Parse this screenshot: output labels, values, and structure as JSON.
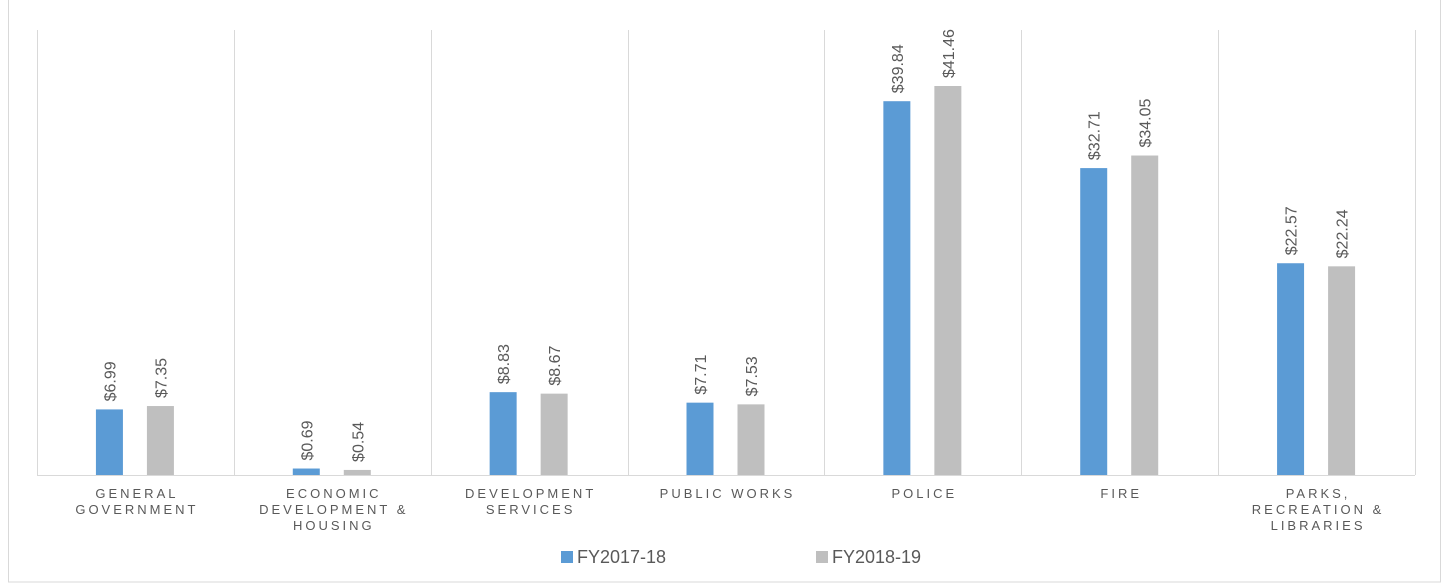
{
  "chart_data": {
    "type": "bar",
    "categories": [
      "GENERAL GOVERNMENT",
      "ECONOMIC DEVELOPMENT & HOUSING",
      "DEVELOPMENT SERVICES",
      "PUBLIC WORKS",
      "POLICE",
      "FIRE",
      "PARKS, RECREATION & LIBRARIES"
    ],
    "series": [
      {
        "name": "FY2017-18",
        "color": "#5b9bd5",
        "values": [
          6.99,
          0.69,
          8.83,
          7.71,
          39.84,
          32.71,
          22.57
        ],
        "value_labels": [
          "$6.99",
          "$0.69",
          "$8.83",
          "$7.71",
          "$39.84",
          "$32.71",
          "$22.57"
        ]
      },
      {
        "name": "FY2018-19",
        "color": "#bfbfbf",
        "values": [
          7.35,
          0.54,
          8.67,
          7.53,
          41.46,
          34.05,
          22.24
        ],
        "value_labels": [
          "$7.35",
          "$0.54",
          "$8.67",
          "$7.53",
          "$41.46",
          "$34.05",
          "$22.24"
        ]
      }
    ],
    "legend": "bottom"
  }
}
